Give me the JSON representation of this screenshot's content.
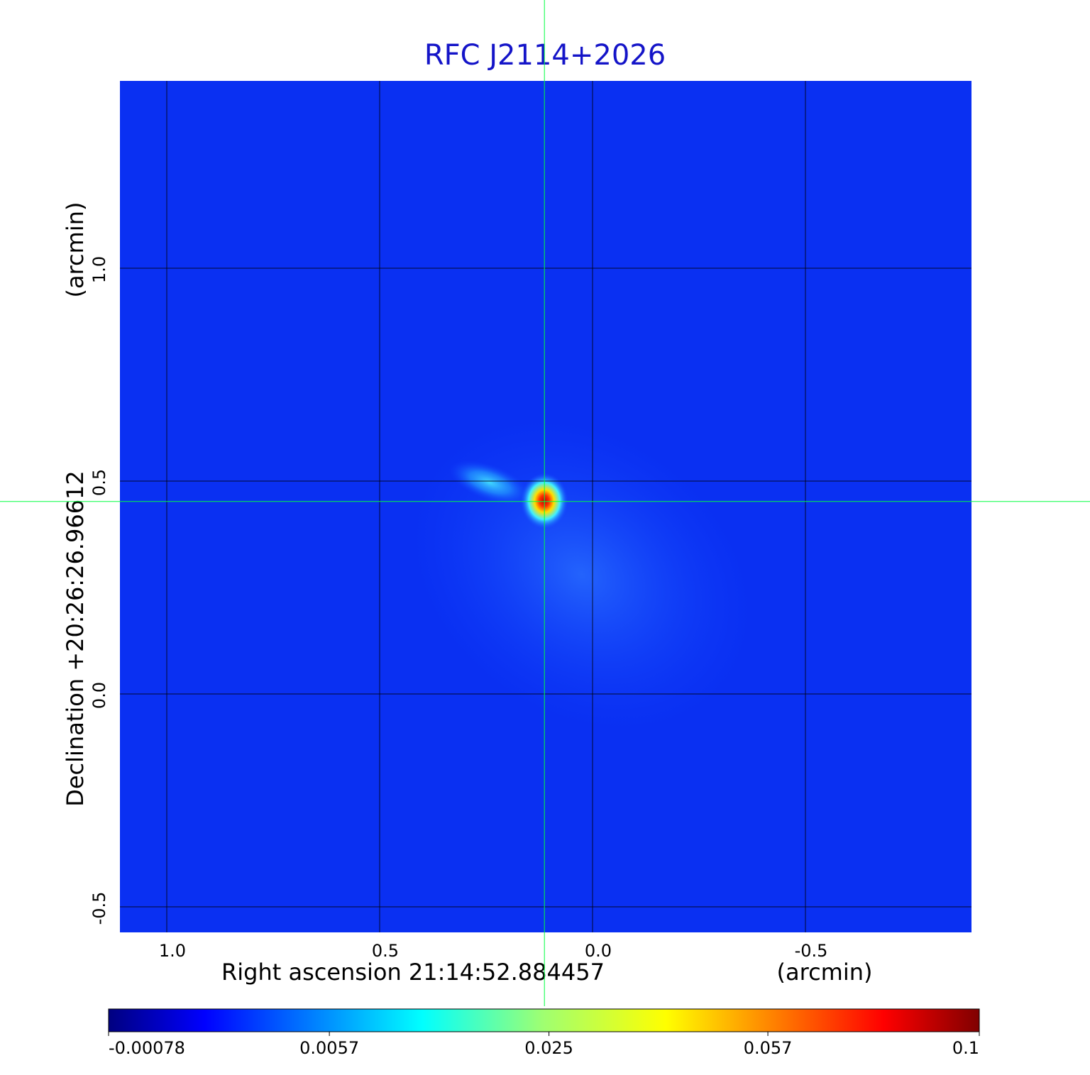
{
  "chart_data": {
    "type": "image",
    "title": "RFC J2114+2026",
    "xlabel": "Right ascension  21:14:52.884457",
    "xunit": "(arcmin)",
    "ylabel": "Declination  +20:26:26.96612",
    "yunit": "(arcmin)",
    "xlim": [
      1.11,
      -0.89
    ],
    "ylim": [
      -0.56,
      1.44
    ],
    "xticks": [
      {
        "value": 1,
        "label": "1.0"
      },
      0.5,
      {
        "value": 0,
        "label": "0.0"
      },
      -0.5
    ],
    "yticks": [
      -0.5,
      {
        "value": 0,
        "label": "0.0"
      },
      0.5,
      {
        "value": 1,
        "label": "1.0"
      }
    ],
    "grid": true,
    "crosshair": [
      0.113,
      0.452
    ],
    "colorbar": {
      "scale": "sqrt",
      "lim": [
        -0.00078,
        0.1
      ],
      "ticks": [
        -0.00078,
        0.0057,
        0.025,
        0.057,
        0.1
      ]
    }
  }
}
